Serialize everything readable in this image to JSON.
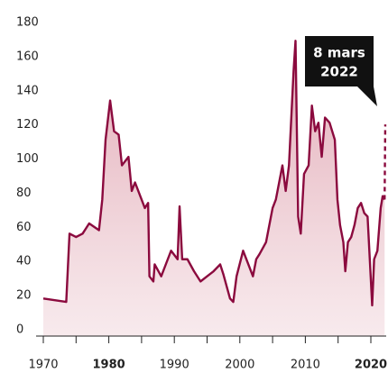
{
  "chart_data": {
    "type": "line",
    "x": [
      1970,
      1973.5,
      1974,
      1975,
      1976,
      1977,
      1978.5,
      1979,
      1979.5,
      1980.2,
      1980.8,
      1981.5,
      1982,
      1983,
      1983.5,
      1984,
      1985,
      1985.5,
      1986,
      1986.2,
      1986.8,
      1987,
      1988,
      1989,
      1989.5,
      1990.5,
      1990.8,
      1991.2,
      1992,
      1993,
      1994,
      1995,
      1996,
      1997,
      1997.5,
      1998.5,
      1999,
      1999.5,
      2000.5,
      2001.5,
      2002,
      2002.5,
      2003,
      2004,
      2005,
      2005.5,
      2006,
      2006.5,
      2007,
      2007.5,
      2008.2,
      2008.5,
      2008.9,
      2009.3,
      2009.8,
      2010.5,
      2011,
      2011.5,
      2012,
      2012.5,
      2013,
      2013.7,
      2014.5,
      2014.9,
      2015.3,
      2015.8,
      2016.1,
      2016.5,
      2017,
      2017.5,
      2018,
      2018.5,
      2019,
      2019.5,
      2020.2,
      2020.5,
      2021,
      2021.5,
      2021.8,
      2022.1
    ],
    "series": [
      {
        "color": "#8b0a3e",
        "values": [
          22,
          20,
          60,
          58,
          60,
          66,
          62,
          80,
          115,
          138,
          120,
          118,
          100,
          105,
          85,
          90,
          80,
          75,
          78,
          35,
          32,
          42,
          35,
          45,
          50,
          45,
          76,
          45,
          45,
          38,
          32,
          35,
          38,
          42,
          36,
          22,
          20,
          35,
          50,
          40,
          35,
          45,
          48,
          55,
          75,
          80,
          90,
          100,
          85,
          100,
          155,
          173,
          70,
          60,
          95,
          100,
          135,
          120,
          125,
          105,
          128,
          125,
          115,
          80,
          65,
          55,
          38,
          55,
          58,
          65,
          75,
          78,
          72,
          70,
          18,
          45,
          50,
          75,
          82,
          80
        ]
      }
    ],
    "projection": {
      "x": [
        2022.1,
        2022.2
      ],
      "values": [
        80,
        124
      ]
    },
    "annotation": [
      "8 mars",
      "2022"
    ],
    "xlim": [
      1970,
      2022.5
    ],
    "ylim": [
      0,
      180
    ],
    "xticks": [
      1970,
      1980,
      1990,
      2000,
      2010,
      2020
    ],
    "xtick_bold": [
      false,
      true,
      false,
      false,
      false,
      true
    ],
    "xminor": [
      1975,
      1985,
      1995,
      2005,
      2015
    ],
    "yticks": [
      0,
      20,
      40,
      60,
      80,
      100,
      120,
      140,
      160,
      180
    ]
  }
}
